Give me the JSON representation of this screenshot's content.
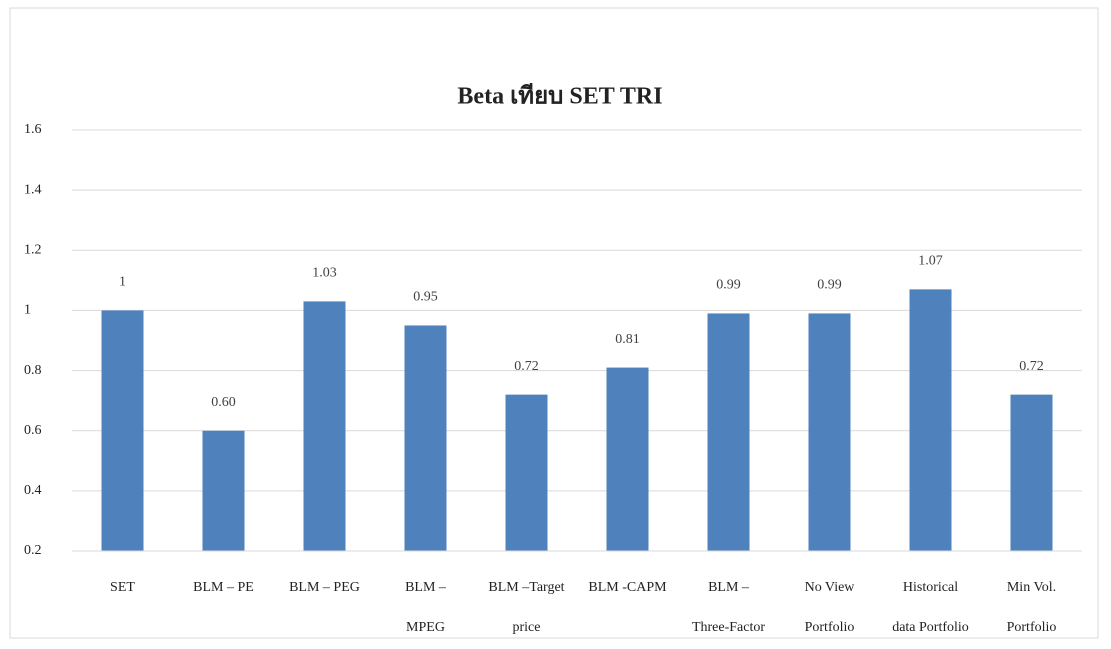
{
  "chart_data": {
    "type": "bar",
    "title": "Beta เทียบ SET TRI",
    "categories": [
      "SET",
      "BLM – PE",
      "BLM – PEG",
      "BLM –\nMPEG",
      "BLM –Target\nprice",
      "BLM -CAPM",
      "BLM –\nThree-Factor",
      "No View\nPortfolio",
      "Historical\ndata Portfolio",
      "Min Vol.\nPortfolio"
    ],
    "values": [
      1,
      0.6,
      1.03,
      0.95,
      0.72,
      0.81,
      0.99,
      0.99,
      1.07,
      0.72
    ],
    "value_labels": [
      "1",
      "0.60",
      "1.03",
      "0.95",
      "0.72",
      "0.81",
      "0.99",
      "0.99",
      "1.07",
      "0.72"
    ],
    "color": "#4f81bd",
    "ylim": [
      0.2,
      1.6
    ],
    "yticks": [
      0.2,
      0.4,
      0.6,
      0.8,
      1,
      1.2,
      1.4,
      1.6
    ],
    "grid": true
  }
}
